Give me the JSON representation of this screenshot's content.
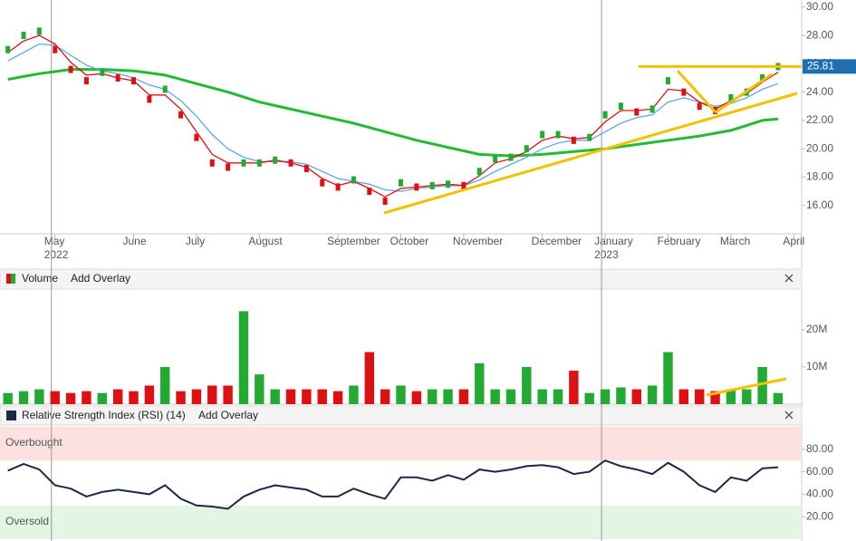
{
  "chart_data": [
    {
      "type": "line",
      "categories": [
        null,
        null,
        null,
        "May 2022",
        null,
        null,
        null,
        null,
        "June",
        null,
        null,
        null,
        "July",
        null,
        null,
        null,
        "August",
        null,
        null,
        null,
        null,
        "September",
        null,
        null,
        null,
        "October",
        null,
        null,
        null,
        "November",
        null,
        null,
        null,
        null,
        "December",
        null,
        null,
        null,
        "January 2023",
        null,
        null,
        null,
        "February",
        null,
        null,
        null,
        "March",
        null,
        null,
        null,
        "April"
      ],
      "ylim": [
        14.0,
        30.5
      ],
      "yticks": [
        {
          "value": 16,
          "label": "16.00"
        },
        {
          "value": 18,
          "label": "18.00"
        },
        {
          "value": 20,
          "label": "20.00"
        },
        {
          "value": 22,
          "label": "22.00"
        },
        {
          "value": 24,
          "label": "24.00"
        },
        {
          "value": 26,
          "label": "26.00"
        },
        {
          "value": 28,
          "label": "28.00"
        },
        {
          "value": 30,
          "label": "30.00"
        }
      ],
      "up_color": "#22aa33",
      "down_color": "#dd1111",
      "close": [
        27.0,
        28.0,
        28.3,
        27.0,
        25.6,
        24.8,
        25.4,
        25.0,
        24.8,
        23.5,
        24.2,
        22.4,
        20.8,
        19.0,
        18.7,
        19.0,
        19.0,
        19.2,
        19.0,
        18.6,
        17.6,
        17.3,
        17.8,
        17.0,
        16.3,
        17.6,
        17.3,
        17.4,
        17.5,
        17.4,
        18.4,
        19.3,
        19.4,
        20.0,
        21.0,
        21.0,
        20.6,
        20.8,
        22.4,
        23.0,
        22.6,
        22.8,
        24.8,
        24.0,
        23.0,
        22.7,
        23.6,
        24.0,
        25.0,
        25.8,
        null
      ],
      "series": [
        {
          "color": "#22bb33",
          "values": [
            24.9,
            25.1,
            25.3,
            25.45,
            25.6,
            25.6,
            25.6,
            25.55,
            25.5,
            25.35,
            25.2,
            24.9,
            24.6,
            24.3,
            24.0,
            23.65,
            23.3,
            23.05,
            22.8,
            22.55,
            22.3,
            22.05,
            21.8,
            21.5,
            21.2,
            20.9,
            20.6,
            20.35,
            20.1,
            19.85,
            19.6,
            19.55,
            19.5,
            19.55,
            19.6,
            19.7,
            19.8,
            19.9,
            20.0,
            20.15,
            20.3,
            20.45,
            20.6,
            20.75,
            20.9,
            21.1,
            21.3,
            21.65,
            22.0,
            22.1,
            null
          ]
        },
        {
          "color": "#5aa9e6",
          "values": [
            26.2,
            26.8,
            27.4,
            27.3,
            26.6,
            25.9,
            25.5,
            25.3,
            25.0,
            24.5,
            24.2,
            23.4,
            22.3,
            21.0,
            20.0,
            19.4,
            19.1,
            19.1,
            19.1,
            18.9,
            18.4,
            17.9,
            17.7,
            17.5,
            17.1,
            17.0,
            17.2,
            17.3,
            17.4,
            17.4,
            17.8,
            18.4,
            18.9,
            19.4,
            20.0,
            20.4,
            20.6,
            20.6,
            21.2,
            21.8,
            22.2,
            22.4,
            23.3,
            23.6,
            23.3,
            23.0,
            23.2,
            23.6,
            24.2,
            24.6,
            null
          ]
        },
        {
          "color": "#e01010",
          "values": [
            26.8,
            27.6,
            28.0,
            27.4,
            26.1,
            25.2,
            25.3,
            25.0,
            24.8,
            23.8,
            23.8,
            22.8,
            21.2,
            19.6,
            19.0,
            19.0,
            19.0,
            19.2,
            19.0,
            18.7,
            17.9,
            17.4,
            17.7,
            17.2,
            16.6,
            17.2,
            17.3,
            17.4,
            17.5,
            17.4,
            18.1,
            19.0,
            19.3,
            19.8,
            20.6,
            20.9,
            20.7,
            20.8,
            21.9,
            22.7,
            22.7,
            22.8,
            24.2,
            24.1,
            23.3,
            22.8,
            23.4,
            23.9,
            24.7,
            25.4,
            null
          ]
        }
      ],
      "last_price": 25.81,
      "last_price_color": "#1e6fb0"
    },
    {
      "type": "bar",
      "title": "Volume",
      "overlay_button": "Add Overlay",
      "ylim": [
        0,
        30700000
      ],
      "yticks": [
        {
          "value": 10000000,
          "label": "10M"
        },
        {
          "value": 20000000,
          "label": "20M"
        }
      ],
      "values": [
        3000000,
        3500000,
        4000000,
        3500000,
        3000000,
        3500000,
        3000000,
        4000000,
        3500000,
        5000000,
        10000000,
        3500000,
        4000000,
        5000000,
        5000000,
        25000000,
        8000000,
        4000000,
        4000000,
        4000000,
        4000000,
        3500000,
        5000000,
        14000000,
        4000000,
        5000000,
        3500000,
        4000000,
        4000000,
        4000000,
        11000000,
        4000000,
        4000000,
        10000000,
        4000000,
        4000000,
        9000000,
        3000000,
        4000000,
        4500000,
        4000000,
        5000000,
        14000000,
        4000000,
        4000000,
        3500000,
        4000000,
        4000000,
        10000000,
        3000000,
        null
      ]
    },
    {
      "type": "line",
      "title": "Relative Strength Index (RSI) (14)",
      "overlay_button": "Add Overlay",
      "ylim": [
        0,
        100
      ],
      "yticks": [
        {
          "value": 20,
          "label": "20.00"
        },
        {
          "value": 40,
          "label": "40.00"
        },
        {
          "value": 60,
          "label": "60.00"
        },
        {
          "value": 80,
          "label": "80.00"
        }
      ],
      "overbought": {
        "label": "Overbought",
        "range": [
          70,
          100
        ],
        "color": "#fde0e0"
      },
      "oversold": {
        "label": "Oversold",
        "range": [
          0,
          30
        ],
        "color": "#e3f6e3"
      },
      "color": "#1a2a44",
      "values": [
        61,
        67,
        62,
        48,
        45,
        38,
        42,
        44,
        42,
        40,
        48,
        36,
        30,
        29,
        27,
        38,
        44,
        48,
        46,
        44,
        38,
        38,
        45,
        40,
        36,
        55,
        55,
        52,
        57,
        53,
        62,
        60,
        62,
        65,
        66,
        64,
        58,
        60,
        70,
        65,
        62,
        58,
        68,
        60,
        48,
        42,
        55,
        52,
        63,
        64,
        null
      ]
    }
  ]
}
